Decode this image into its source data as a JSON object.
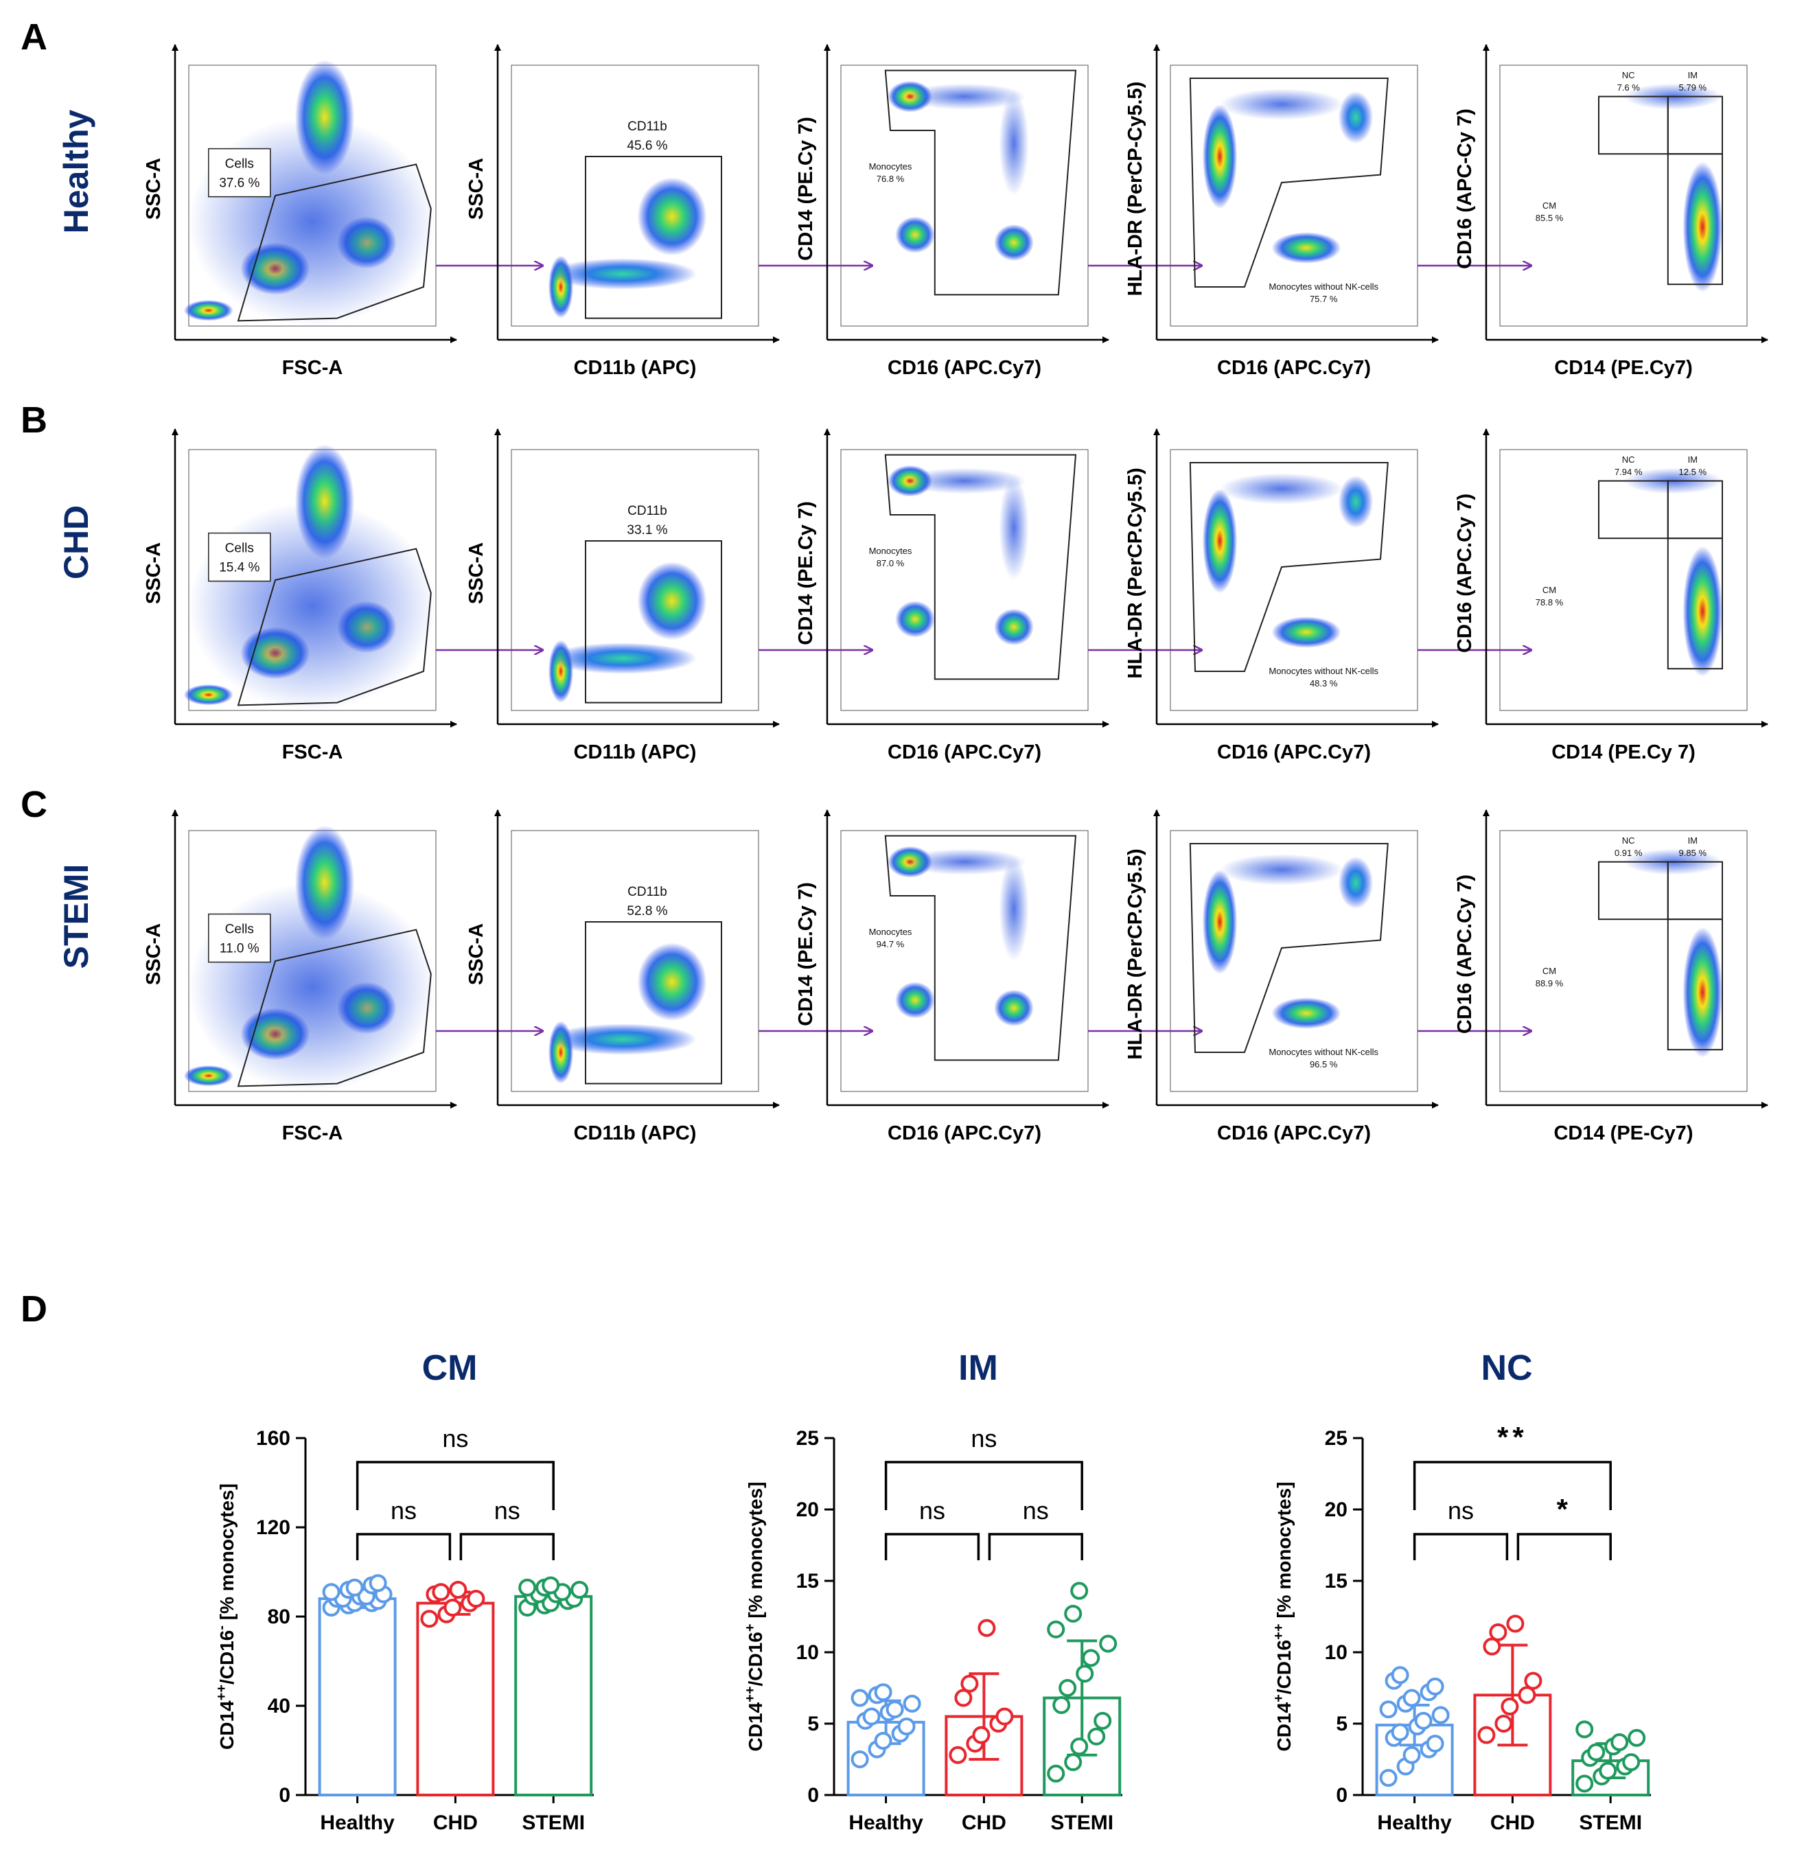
{
  "figure": {
    "panel_letters": [
      "A",
      "B",
      "C",
      "D"
    ],
    "flow_rows": [
      {
        "condition": "Healthy",
        "plots": [
          {
            "xlabel": "FSC-A",
            "ylabel": "SSC-A",
            "gates": [
              {
                "name": "Cells",
                "value": "37.6 %"
              }
            ]
          },
          {
            "xlabel": "CD11b (APC)",
            "ylabel": "SSC-A",
            "gates": [
              {
                "name": "CD11b",
                "value": "45.6 %"
              }
            ]
          },
          {
            "xlabel": "CD16 (APC.Cy7)",
            "ylabel": "CD14 (PE.Cy 7)",
            "gates": [
              {
                "name": "Monocytes",
                "value": "76.8 %"
              }
            ]
          },
          {
            "xlabel": "CD16 (APC.Cy7)",
            "ylabel": "HLA-DR (PerCP-Cy5.5)",
            "gates": [
              {
                "name": "Monocytes without NK-cells",
                "value": "75.7 %"
              }
            ]
          },
          {
            "xlabel": "CD14 (PE.Cy7)",
            "ylabel": "CD16 (APC-Cy 7)",
            "gates": [
              {
                "name": "NC",
                "value": "7.6 %"
              },
              {
                "name": "IM",
                "value": "5.79 %"
              },
              {
                "name": "CM",
                "value": "85.5 %"
              }
            ]
          }
        ]
      },
      {
        "condition": "CHD",
        "plots": [
          {
            "xlabel": "FSC-A",
            "ylabel": "SSC-A",
            "gates": [
              {
                "name": "Cells",
                "value": "15.4 %"
              }
            ]
          },
          {
            "xlabel": "CD11b (APC)",
            "ylabel": "SSC-A",
            "gates": [
              {
                "name": "CD11b",
                "value": "33.1 %"
              }
            ]
          },
          {
            "xlabel": "CD16 (APC.Cy7)",
            "ylabel": "CD14 (PE.Cy 7)",
            "gates": [
              {
                "name": "Monocytes",
                "value": "87.0 %"
              }
            ]
          },
          {
            "xlabel": "CD16 (APC.Cy7)",
            "ylabel": "HLA-DR (PerCP.Cy5.5)",
            "gates": [
              {
                "name": "Monocytes without NK-cells",
                "value": "48.3 %"
              }
            ]
          },
          {
            "xlabel": "CD14 (PE.Cy 7)",
            "ylabel": "CD16 (APC.Cy 7)",
            "gates": [
              {
                "name": "NC",
                "value": "7.94 %"
              },
              {
                "name": "IM",
                "value": "12.5 %"
              },
              {
                "name": "CM",
                "value": "78.8 %"
              }
            ]
          }
        ]
      },
      {
        "condition": "STEMI",
        "plots": [
          {
            "xlabel": "FSC-A",
            "ylabel": "SSC-A",
            "gates": [
              {
                "name": "Cells",
                "value": "11.0 %"
              }
            ]
          },
          {
            "xlabel": "CD11b (APC)",
            "ylabel": "SSC-A",
            "gates": [
              {
                "name": "CD11b",
                "value": "52.8 %"
              }
            ]
          },
          {
            "xlabel": "CD16 (APC.Cy7)",
            "ylabel": "CD14 (PE.Cy 7)",
            "gates": [
              {
                "name": "Monocytes",
                "value": "94.7 %"
              }
            ]
          },
          {
            "xlabel": "CD16 (APC.Cy7)",
            "ylabel": "HLA-DR (PerCP.Cy5.5)",
            "gates": [
              {
                "name": "Monocytes without NK-cells",
                "value": "96.5 %"
              }
            ]
          },
          {
            "xlabel": "CD14 (PE-Cy7)",
            "ylabel": "CD16 (APC.Cy 7)",
            "gates": [
              {
                "name": "NC",
                "value": "0.91 %"
              },
              {
                "name": "IM",
                "value": "9.85 %"
              },
              {
                "name": "CM",
                "value": "88.9 %"
              }
            ]
          }
        ]
      }
    ]
  },
  "colors": {
    "Healthy": "#5b9be8",
    "CHD": "#e8262e",
    "STEMI": "#1f9a5e",
    "title": "#0b2a6b",
    "arrow": "#7b2fa8"
  },
  "chart_data": [
    {
      "type": "bar",
      "title": "CM",
      "ylabel_parts": [
        "CD14",
        "++",
        "/CD16",
        "-",
        " [% monocytes]"
      ],
      "categories": [
        "Healthy",
        "CHD",
        "STEMI"
      ],
      "values": [
        88,
        86,
        89
      ],
      "sd": [
        4,
        5,
        3
      ],
      "ylim": [
        0,
        160
      ],
      "yticks": [
        0,
        40,
        80,
        120,
        160
      ],
      "points": [
        [
          84,
          85,
          86,
          86,
          87,
          88,
          88,
          89,
          89,
          90,
          91,
          92,
          93,
          94,
          95
        ],
        [
          79,
          81,
          84,
          86,
          88,
          90,
          91,
          92
        ],
        [
          84,
          85,
          86,
          87,
          88,
          89,
          90,
          90,
          91,
          92,
          93,
          93,
          94
        ]
      ],
      "comparisons": [
        {
          "a": "Healthy",
          "b": "CHD",
          "label": "ns",
          "level": 1
        },
        {
          "a": "CHD",
          "b": "STEMI",
          "label": "ns",
          "level": 1
        },
        {
          "a": "Healthy",
          "b": "STEMI",
          "label": "ns",
          "level": 2
        }
      ]
    },
    {
      "type": "bar",
      "title": "IM",
      "ylabel_parts": [
        "CD14",
        "++",
        "/CD16",
        "+",
        " [% monocytes]"
      ],
      "categories": [
        "Healthy",
        "CHD",
        "STEMI"
      ],
      "values": [
        5.1,
        5.5,
        6.8
      ],
      "sd": [
        1.5,
        3.0,
        4.0
      ],
      "ylim": [
        0,
        25
      ],
      "yticks": [
        0,
        5,
        10,
        15,
        20,
        25
      ],
      "points": [
        [
          2.5,
          3.2,
          3.8,
          4.3,
          4.8,
          5.2,
          5.5,
          5.8,
          6.0,
          6.4,
          6.8,
          7.0,
          7.2
        ],
        [
          2.8,
          3.6,
          4.2,
          5.0,
          5.5,
          6.8,
          7.8,
          11.7
        ],
        [
          1.5,
          2.3,
          3.4,
          4.1,
          5.2,
          6.3,
          7.5,
          8.5,
          9.6,
          10.6,
          11.6,
          12.7,
          14.3
        ]
      ],
      "comparisons": [
        {
          "a": "Healthy",
          "b": "CHD",
          "label": "ns",
          "level": 1
        },
        {
          "a": "CHD",
          "b": "STEMI",
          "label": "ns",
          "level": 1
        },
        {
          "a": "Healthy",
          "b": "STEMI",
          "label": "ns",
          "level": 2
        }
      ]
    },
    {
      "type": "bar",
      "title": "NC",
      "ylabel_parts": [
        "CD14",
        "+",
        "/CD16",
        "++",
        " [% monocytes]"
      ],
      "categories": [
        "Healthy",
        "CHD",
        "STEMI"
      ],
      "values": [
        4.9,
        7.0,
        2.4
      ],
      "sd": [
        1.4,
        3.5,
        1.2
      ],
      "ylim": [
        0,
        25
      ],
      "yticks": [
        0,
        5,
        10,
        15,
        20,
        25
      ],
      "points": [
        [
          1.2,
          2.0,
          2.8,
          3.2,
          3.6,
          4.0,
          4.4,
          4.8,
          5.2,
          5.6,
          6.0,
          6.4,
          6.8,
          7.2,
          7.6,
          8.0,
          8.4
        ],
        [
          4.2,
          5.0,
          6.2,
          7.0,
          8.0,
          10.4,
          11.4,
          12.0
        ],
        [
          0.8,
          1.3,
          1.7,
          2.0,
          2.3,
          2.6,
          3.0,
          3.4,
          3.7,
          4.0,
          4.6
        ]
      ],
      "comparisons": [
        {
          "a": "Healthy",
          "b": "CHD",
          "label": "ns",
          "level": 1
        },
        {
          "a": "CHD",
          "b": "STEMI",
          "label": "*",
          "level": 1
        },
        {
          "a": "Healthy",
          "b": "STEMI",
          "label": "**",
          "level": 2
        }
      ]
    }
  ]
}
